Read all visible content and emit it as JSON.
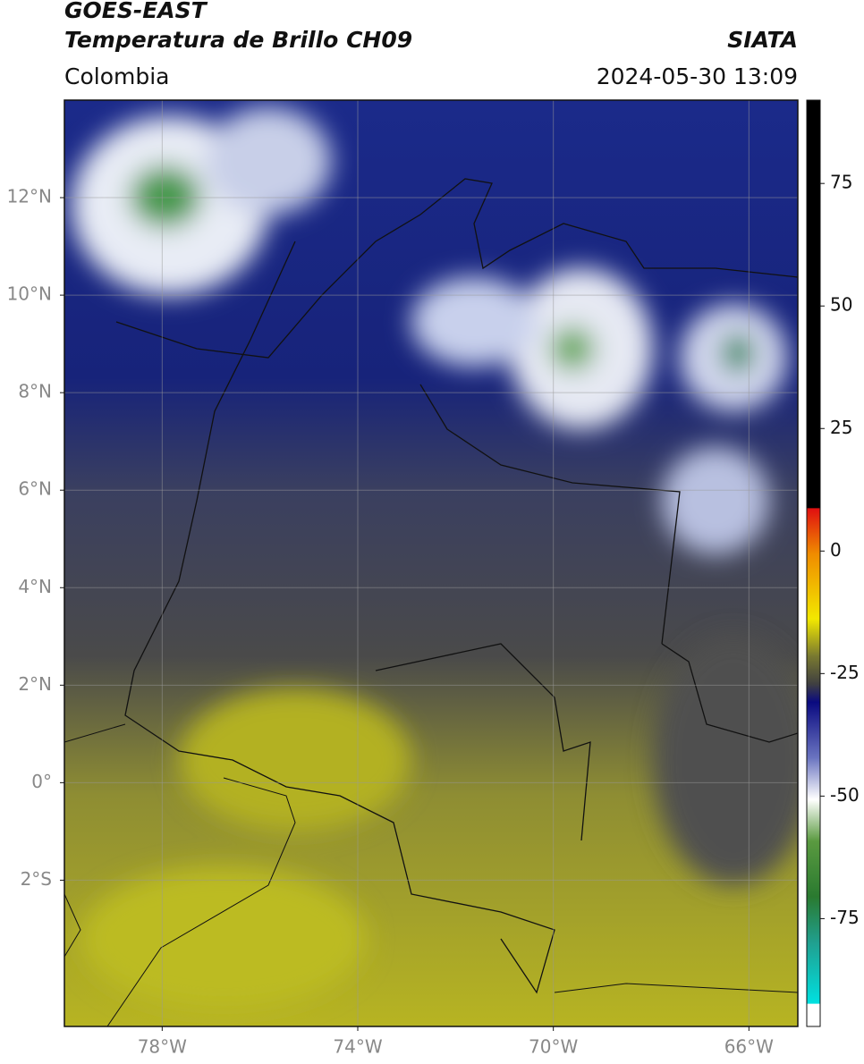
{
  "header": {
    "title": "GOES-EAST",
    "subtitle": "Temperatura de Brillo CH09",
    "source": "SIATA",
    "region": "Colombia",
    "timestamp": "2024-05-30 13:09"
  },
  "map": {
    "lonlim": [
      -80,
      -65
    ],
    "latlim": [
      -5,
      14
    ],
    "lat_ticks": [
      {
        "value": 12,
        "label": "12°N"
      },
      {
        "value": 10,
        "label": "10°N"
      },
      {
        "value": 8,
        "label": "8°N"
      },
      {
        "value": 6,
        "label": "6°N"
      },
      {
        "value": 4,
        "label": "4°N"
      },
      {
        "value": 2,
        "label": "2°N"
      },
      {
        "value": 0,
        "label": "0°"
      },
      {
        "value": -2,
        "label": "2°S"
      }
    ],
    "lon_ticks": [
      {
        "value": -78,
        "label": "78°W"
      },
      {
        "value": -74,
        "label": "74°W"
      },
      {
        "value": -70,
        "label": "70°W"
      },
      {
        "value": -66,
        "label": "66°W"
      }
    ],
    "grid": true
  },
  "colorbar": {
    "clim": [
      -97,
      92
    ],
    "ticks": [
      75,
      50,
      25,
      0,
      -25,
      -50,
      -75
    ]
  }
}
